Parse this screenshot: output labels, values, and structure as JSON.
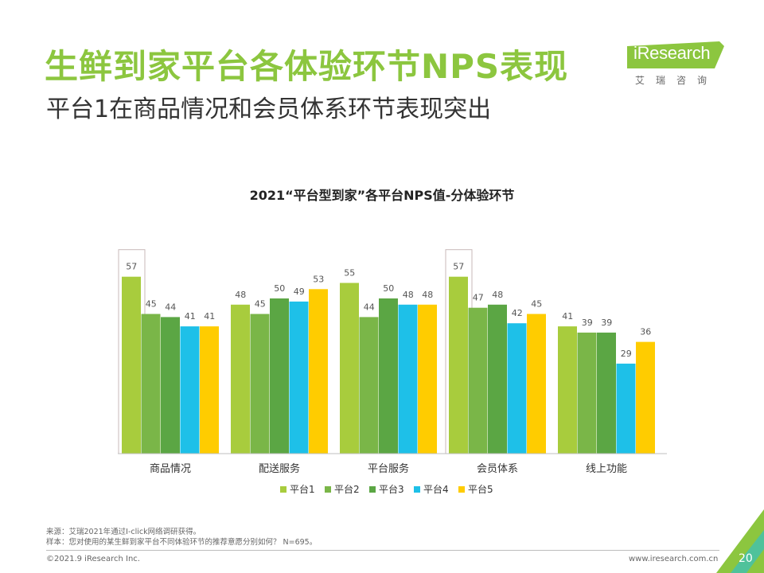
{
  "slide": {
    "title": "生鲜到家平台各体验环节NPS表现",
    "subtitle": "平台1在商品情况和会员体系环节表现突出",
    "page_number": "20"
  },
  "logo": {
    "brand": "iResearch",
    "chinese": "艾瑞咨询"
  },
  "footer": {
    "source": "来源：艾瑞2021年通过I-click网络调研获得。",
    "sample": "样本：您对使用的某生鲜到家平台不同体验环节的推荐意愿分别如何？ N=695。",
    "copyright": "©2021.9 iResearch Inc.",
    "website": "www.iresearch.com.cn"
  },
  "colors": {
    "title_green": "#8cc63f",
    "series": [
      "#a8cc3d",
      "#7ab648",
      "#5ba644",
      "#1ec0e8",
      "#ffcc00"
    ]
  },
  "chart_data": {
    "type": "bar",
    "title": "2021“平台型到家”各平台NPS值-分体验环节",
    "categories": [
      "商品情况",
      "配送服务",
      "平台服务",
      "会员体系",
      "线上功能"
    ],
    "series": [
      {
        "name": "平台1",
        "values": [
          57,
          48,
          55,
          57,
          41
        ]
      },
      {
        "name": "平台2",
        "values": [
          45,
          45,
          44,
          47,
          39
        ]
      },
      {
        "name": "平台3",
        "values": [
          44,
          50,
          50,
          48,
          39
        ]
      },
      {
        "name": "平台4",
        "values": [
          41,
          49,
          48,
          42,
          29
        ]
      },
      {
        "name": "平台5",
        "values": [
          41,
          53,
          48,
          45,
          36
        ]
      }
    ],
    "highlighted_categories": [
      "商品情况",
      "会员体系"
    ],
    "ylim": [
      0,
      60
    ],
    "xlabel": "",
    "ylabel": "",
    "legend": "bottom"
  }
}
